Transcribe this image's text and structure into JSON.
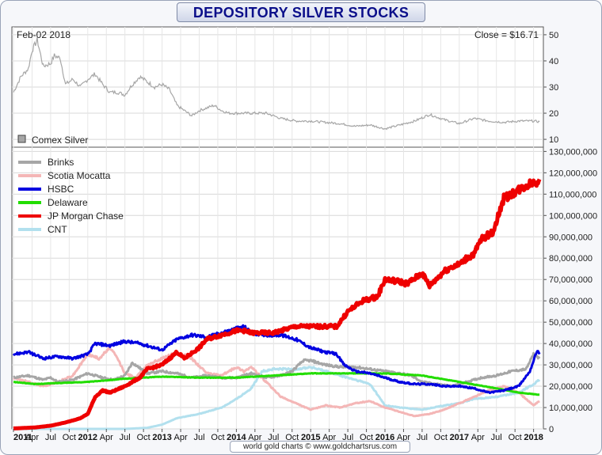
{
  "title": "DEPOSITORY SILVER STOCKS",
  "footer": "world gold charts © www.goldchartsrus.com",
  "chart_data": [
    {
      "type": "line",
      "panel": "top",
      "date_label": "Feb-02  2018",
      "close_label": "Close = $16.71",
      "legend": "Comex Silver",
      "series_color": "#a6a6a6",
      "ylim": [
        7,
        53
      ],
      "yticks": [
        10,
        20,
        30,
        40,
        50
      ],
      "x": [
        2011.0,
        2011.1,
        2011.2,
        2011.25,
        2011.32,
        2011.4,
        2011.5,
        2011.55,
        2011.63,
        2011.7,
        2011.8,
        2011.9,
        2012.0,
        2012.1,
        2012.2,
        2012.3,
        2012.4,
        2012.5,
        2012.6,
        2012.7,
        2012.8,
        2012.9,
        2013.0,
        2013.1,
        2013.2,
        2013.3,
        2013.4,
        2013.5,
        2013.6,
        2013.7,
        2013.8,
        2013.9,
        2014.0,
        2014.2,
        2014.4,
        2014.6,
        2014.8,
        2015.0,
        2015.2,
        2015.4,
        2015.6,
        2015.8,
        2016.0,
        2016.2,
        2016.4,
        2016.6,
        2016.8,
        2017.0,
        2017.2,
        2017.4,
        2017.6,
        2017.8,
        2018.0,
        2018.08
      ],
      "y": [
        28,
        34,
        37,
        44,
        48,
        38,
        39,
        42,
        41,
        31,
        33,
        30,
        33,
        35,
        31,
        28,
        28,
        27,
        31,
        34,
        32,
        30,
        31,
        29,
        23,
        21,
        19,
        21,
        22,
        23,
        21,
        20,
        20,
        20,
        20,
        18,
        17,
        17,
        16.5,
        16,
        15,
        15.5,
        14,
        15.5,
        17,
        19.5,
        17.5,
        16,
        18,
        17,
        16.5,
        17,
        17,
        16.71
      ]
    },
    {
      "type": "line",
      "panel": "bottom",
      "ylim": [
        0,
        132000000
      ],
      "yticks": [
        0,
        10000000,
        20000000,
        30000000,
        40000000,
        50000000,
        60000000,
        70000000,
        80000000,
        90000000,
        100000000,
        110000000,
        120000000,
        130000000
      ],
      "ytick_labels": [
        "0",
        "10,000,000",
        "20,000,000",
        "30,000,000",
        "40,000,000",
        "50,000,000",
        "60,000,000",
        "70,000,000",
        "80,000,000",
        "90,000,000",
        "100,000,000",
        "110,000,000",
        "120,000,000",
        "130,000,000"
      ],
      "x_range": [
        2011.0,
        2018.1
      ],
      "xticks": [
        {
          "x": 2011.0,
          "label": "2011",
          "bold": true
        },
        {
          "x": 2011.25,
          "label": "Apr",
          "bold": false
        },
        {
          "x": 2011.5,
          "label": "Jul",
          "bold": false
        },
        {
          "x": 2011.75,
          "label": "Oct",
          "bold": false
        },
        {
          "x": 2012.0,
          "label": "2012",
          "bold": true
        },
        {
          "x": 2012.25,
          "label": "Apr",
          "bold": false
        },
        {
          "x": 2012.5,
          "label": "Jul",
          "bold": false
        },
        {
          "x": 2012.75,
          "label": "Oct",
          "bold": false
        },
        {
          "x": 2013.0,
          "label": "2013",
          "bold": true
        },
        {
          "x": 2013.25,
          "label": "Apr",
          "bold": false
        },
        {
          "x": 2013.5,
          "label": "Jul",
          "bold": false
        },
        {
          "x": 2013.75,
          "label": "Oct",
          "bold": false
        },
        {
          "x": 2014.0,
          "label": "2014",
          "bold": true
        },
        {
          "x": 2014.25,
          "label": "Apr",
          "bold": false
        },
        {
          "x": 2014.5,
          "label": "Jul",
          "bold": false
        },
        {
          "x": 2014.75,
          "label": "Oct",
          "bold": false
        },
        {
          "x": 2015.0,
          "label": "2015",
          "bold": true
        },
        {
          "x": 2015.25,
          "label": "Apr",
          "bold": false
        },
        {
          "x": 2015.5,
          "label": "Jul",
          "bold": false
        },
        {
          "x": 2015.75,
          "label": "Oct",
          "bold": false
        },
        {
          "x": 2016.0,
          "label": "2016",
          "bold": true
        },
        {
          "x": 2016.25,
          "label": "Apr",
          "bold": false
        },
        {
          "x": 2016.5,
          "label": "Jul",
          "bold": false
        },
        {
          "x": 2016.75,
          "label": "Oct",
          "bold": false
        },
        {
          "x": 2017.0,
          "label": "2017",
          "bold": true
        },
        {
          "x": 2017.25,
          "label": "Apr",
          "bold": false
        },
        {
          "x": 2017.5,
          "label": "Jul",
          "bold": false
        },
        {
          "x": 2017.75,
          "label": "Oct",
          "bold": false
        },
        {
          "x": 2018.0,
          "label": "2018",
          "bold": true
        }
      ],
      "series": [
        {
          "name": "Brinks",
          "color": "#a6a6a6",
          "width": 3,
          "x": [
            2011.0,
            2011.2,
            2011.4,
            2011.5,
            2011.6,
            2011.8,
            2012.0,
            2012.2,
            2012.35,
            2012.5,
            2012.6,
            2012.8,
            2013.0,
            2013.2,
            2013.4,
            2013.6,
            2013.8,
            2014.0,
            2014.2,
            2014.4,
            2014.6,
            2014.75,
            2014.9,
            2015.0,
            2015.2,
            2015.4,
            2015.6,
            2015.8,
            2016.0,
            2016.2,
            2016.35,
            2016.5,
            2016.7,
            2016.9,
            2017.1,
            2017.3,
            2017.5,
            2017.7,
            2017.9,
            2018.0,
            2018.08
          ],
          "y": [
            24000000,
            25000000,
            23000000,
            24000000,
            22000000,
            23000000,
            26000000,
            24000000,
            23000000,
            25000000,
            31000000,
            26000000,
            27000000,
            26000000,
            24000000,
            25000000,
            24000000,
            24000000,
            26000000,
            24000000,
            25000000,
            27000000,
            32000000,
            32000000,
            30000000,
            29000000,
            29000000,
            28000000,
            27000000,
            26000000,
            25000000,
            22000000,
            21000000,
            20000000,
            22000000,
            24000000,
            25000000,
            27000000,
            28000000,
            35000000,
            33000000
          ]
        },
        {
          "name": "Scotia Mocatta",
          "color": "#f4b6b6",
          "width": 3,
          "x": [
            2011.0,
            2011.2,
            2011.4,
            2011.6,
            2011.8,
            2011.9,
            2012.0,
            2012.15,
            2012.3,
            2012.4,
            2012.5,
            2012.65,
            2012.8,
            2013.0,
            2013.2,
            2013.4,
            2013.6,
            2013.8,
            2014.0,
            2014.1,
            2014.2,
            2014.4,
            2014.6,
            2014.8,
            2015.0,
            2015.2,
            2015.4,
            2015.6,
            2015.8,
            2016.0,
            2016.2,
            2016.4,
            2016.6,
            2016.8,
            2017.0,
            2017.2,
            2017.4,
            2017.6,
            2017.8,
            2018.0,
            2018.08
          ],
          "y": [
            24000000,
            22000000,
            20000000,
            22000000,
            25000000,
            30000000,
            35000000,
            33000000,
            38000000,
            33000000,
            26000000,
            24000000,
            30000000,
            33000000,
            36000000,
            33000000,
            26000000,
            25000000,
            29000000,
            27000000,
            29000000,
            22000000,
            15000000,
            12000000,
            9000000,
            11000000,
            10000000,
            12000000,
            13000000,
            10000000,
            8000000,
            6000000,
            7000000,
            9000000,
            12000000,
            15000000,
            18000000,
            20000000,
            17000000,
            11000000,
            13000000
          ]
        },
        {
          "name": "HSBC",
          "color": "#0000e0",
          "width": 3,
          "x": [
            2011.0,
            2011.2,
            2011.4,
            2011.6,
            2011.8,
            2012.0,
            2012.1,
            2012.3,
            2012.5,
            2012.7,
            2012.9,
            2013.0,
            2013.2,
            2013.4,
            2013.6,
            2013.8,
            2014.0,
            2014.1,
            2014.2,
            2014.4,
            2014.6,
            2014.8,
            2015.0,
            2015.2,
            2015.35,
            2015.45,
            2015.6,
            2015.8,
            2016.0,
            2016.2,
            2016.4,
            2016.6,
            2016.8,
            2017.0,
            2017.2,
            2017.4,
            2017.6,
            2017.8,
            2017.95,
            2018.05,
            2018.08
          ],
          "y": [
            35000000,
            36000000,
            33000000,
            34000000,
            33000000,
            35000000,
            40000000,
            39000000,
            41000000,
            40000000,
            38000000,
            37000000,
            42000000,
            44000000,
            43000000,
            45000000,
            47000000,
            48000000,
            45000000,
            44000000,
            44000000,
            42000000,
            38000000,
            36000000,
            35000000,
            30000000,
            27000000,
            26000000,
            24000000,
            22000000,
            21000000,
            21000000,
            20000000,
            20000000,
            19000000,
            17000000,
            18000000,
            20000000,
            27000000,
            37000000,
            35000000
          ]
        },
        {
          "name": "Delaware",
          "color": "#22dd00",
          "width": 3,
          "x": [
            2011.0,
            2011.3,
            2011.6,
            2012.0,
            2012.5,
            2013.0,
            2013.5,
            2014.0,
            2014.5,
            2015.0,
            2015.5,
            2016.0,
            2016.5,
            2017.0,
            2017.5,
            2017.8,
            2018.08
          ],
          "y": [
            22000000,
            21000000,
            21500000,
            22000000,
            23500000,
            24500000,
            24000000,
            24000000,
            25000000,
            26000000,
            26000000,
            26000000,
            25000000,
            22000000,
            19000000,
            17000000,
            16000000
          ]
        },
        {
          "name": "JP Morgan Chase",
          "color": "#ee0000",
          "width": 5,
          "x": [
            2011.0,
            2011.3,
            2011.5,
            2011.7,
            2011.9,
            2012.0,
            2012.1,
            2012.2,
            2012.3,
            2012.5,
            2012.7,
            2012.8,
            2013.0,
            2013.2,
            2013.3,
            2013.5,
            2013.6,
            2013.8,
            2014.0,
            2014.1,
            2014.2,
            2014.5,
            2014.7,
            2014.8,
            2015.0,
            2015.2,
            2015.35,
            2015.5,
            2015.7,
            2015.9,
            2016.0,
            2016.2,
            2016.3,
            2016.5,
            2016.6,
            2016.8,
            2016.9,
            2017.0,
            2017.1,
            2017.2,
            2017.3,
            2017.45,
            2017.6,
            2017.8,
            2017.95,
            2018.05,
            2018.08
          ],
          "y": [
            200000,
            700000,
            1500000,
            3000000,
            5000000,
            7000000,
            15000000,
            18000000,
            17000000,
            20000000,
            24000000,
            28000000,
            30000000,
            36000000,
            33000000,
            38000000,
            42000000,
            44000000,
            46000000,
            46000000,
            45000000,
            45000000,
            47000000,
            48000000,
            48000000,
            48000000,
            48000000,
            55000000,
            60000000,
            62000000,
            70000000,
            69000000,
            68000000,
            73000000,
            67000000,
            74000000,
            76000000,
            77000000,
            80000000,
            82000000,
            89000000,
            92000000,
            108000000,
            112000000,
            115000000,
            116000000,
            117000000
          ]
        },
        {
          "name": "CNT",
          "color": "#b2e0ee",
          "width": 3,
          "x": [
            2011.0,
            2011.5,
            2012.0,
            2012.3,
            2012.5,
            2012.8,
            2013.0,
            2013.2,
            2013.5,
            2013.8,
            2014.0,
            2014.2,
            2014.35,
            2014.5,
            2014.8,
            2015.0,
            2015.2,
            2015.4,
            2015.6,
            2015.8,
            2015.9,
            2016.0,
            2016.2,
            2016.5,
            2016.8,
            2017.0,
            2017.2,
            2017.5,
            2017.8,
            2018.0,
            2018.08
          ],
          "y": [
            0,
            0,
            0,
            0,
            0,
            500000,
            2000000,
            5000000,
            7000000,
            10000000,
            14000000,
            19000000,
            27000000,
            28000000,
            28000000,
            29000000,
            27000000,
            25000000,
            23000000,
            21000000,
            16000000,
            11000000,
            10000000,
            9000000,
            11000000,
            12000000,
            14000000,
            15000000,
            17000000,
            21000000,
            23000000
          ]
        }
      ]
    }
  ]
}
